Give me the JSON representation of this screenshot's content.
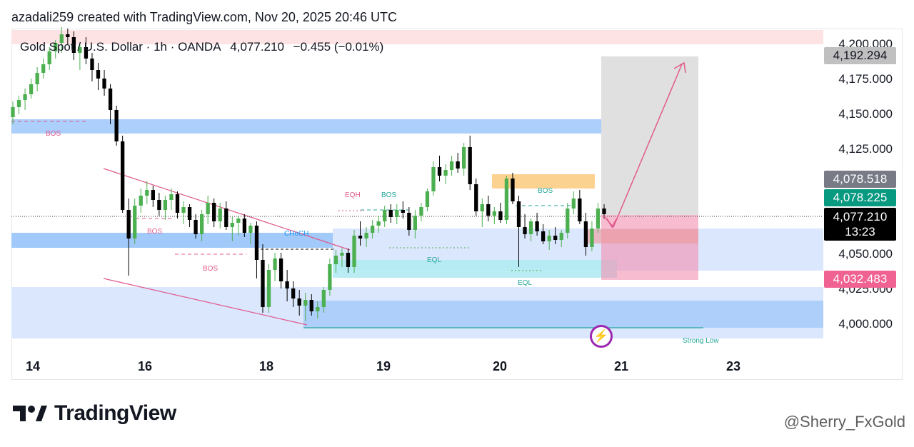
{
  "watermark_top": "azadali259 created with TradingView.com, Nov 20, 2025 20:46 UTC",
  "header": {
    "symbol": "Gold Spot / U.S. Dollar · 1h · OANDA",
    "price": "4,077.210",
    "change": "−0.455 (−0.01%)"
  },
  "brand": "TradingView",
  "watermark_bottom": "@Sherry_FxGold",
  "price_tags": {
    "target": "4,192.294",
    "tag1": "4,078.518",
    "tag2": "4,078.225",
    "last": "4,077.210",
    "countdown": "13:23",
    "stop": "4,032.483"
  },
  "annotations": {
    "bos1": "BOS",
    "bos2": "BOS",
    "bos3": "BOS",
    "bos4": "BOS",
    "bos5": "BOS",
    "choch": "CHoCH",
    "eqh": "EQH",
    "eql1": "EQL",
    "eql2": "EQL",
    "strong_low": "Strong Low"
  },
  "colors": {
    "up": "#4caf50",
    "down": "#000000",
    "zone_blue": "#90bff9",
    "zone_light": "#dbe7fd",
    "cyan": "#b2ebf2",
    "orange": "#fcca7c",
    "pink": "#f8bbd0",
    "grey_box": "#e0e0e0",
    "trendline": "#e05a8b"
  },
  "chart_data": {
    "type": "candlestick",
    "y_ticks": [
      "4,200.000",
      "4,175.000",
      "4,150.000",
      "4,125.000",
      "4,050.000",
      "4,025.000",
      "4,000.000"
    ],
    "x_ticks": [
      "14",
      "16",
      "18",
      "19",
      "20",
      "21",
      "23"
    ],
    "ylim": [
      3990,
      4206
    ],
    "candles": [
      [
        4145,
        4156,
        4140,
        4152
      ],
      [
        4152,
        4160,
        4147,
        4157
      ],
      [
        4157,
        4165,
        4150,
        4161
      ],
      [
        4161,
        4172,
        4158,
        4168
      ],
      [
        4168,
        4180,
        4163,
        4176
      ],
      [
        4176,
        4186,
        4172,
        4182
      ],
      [
        4182,
        4194,
        4178,
        4191
      ],
      [
        4191,
        4199,
        4186,
        4197
      ],
      [
        4197,
        4208,
        4190,
        4203
      ],
      [
        4203,
        4207,
        4196,
        4201
      ],
      [
        4201,
        4205,
        4185,
        4190
      ],
      [
        4190,
        4197,
        4178,
        4194
      ],
      [
        4194,
        4201,
        4182,
        4186
      ],
      [
        4186,
        4190,
        4170,
        4178
      ],
      [
        4178,
        4183,
        4164,
        4172
      ],
      [
        4172,
        4178,
        4160,
        4165
      ],
      [
        4165,
        4168,
        4140,
        4150
      ],
      [
        4150,
        4153,
        4125,
        4128
      ],
      [
        4128,
        4132,
        4078,
        4080
      ],
      [
        4080,
        4088,
        4034,
        4060
      ],
      [
        4060,
        4088,
        4056,
        4083
      ],
      [
        4083,
        4095,
        4078,
        4090
      ],
      [
        4090,
        4100,
        4084,
        4094
      ],
      [
        4094,
        4097,
        4082,
        4087
      ],
      [
        4087,
        4092,
        4076,
        4080
      ],
      [
        4080,
        4090,
        4073,
        4087
      ],
      [
        4087,
        4095,
        4080,
        4091
      ],
      [
        4091,
        4093,
        4074,
        4078
      ],
      [
        4078,
        4086,
        4070,
        4082
      ],
      [
        4082,
        4084,
        4068,
        4073
      ],
      [
        4073,
        4077,
        4060,
        4063
      ],
      [
        4063,
        4080,
        4058,
        4077
      ],
      [
        4077,
        4090,
        4070,
        4085
      ],
      [
        4085,
        4088,
        4068,
        4072
      ],
      [
        4072,
        4085,
        4067,
        4081
      ],
      [
        4081,
        4086,
        4066,
        4068
      ],
      [
        4068,
        4075,
        4058,
        4071
      ],
      [
        4071,
        4076,
        4062,
        4074
      ],
      [
        4074,
        4077,
        4061,
        4064
      ],
      [
        4064,
        4071,
        4056,
        4069
      ],
      [
        4069,
        4072,
        4032,
        4045
      ],
      [
        4045,
        4056,
        4008,
        4012
      ],
      [
        4012,
        4042,
        4008,
        4038
      ],
      [
        4038,
        4050,
        4030,
        4046
      ],
      [
        4046,
        4050,
        4025,
        4030
      ],
      [
        4030,
        4038,
        4016,
        4025
      ],
      [
        4025,
        4030,
        4012,
        4018
      ],
      [
        4018,
        4024,
        4006,
        4013
      ],
      [
        4013,
        4022,
        4002,
        4017
      ],
      [
        4017,
        4021,
        4006,
        4009
      ],
      [
        4009,
        4016,
        4004,
        4012
      ],
      [
        4012,
        4026,
        4008,
        4024
      ],
      [
        4024,
        4046,
        4020,
        4042
      ],
      [
        4042,
        4052,
        4036,
        4048
      ],
      [
        4048,
        4053,
        4040,
        4050
      ],
      [
        4050,
        4053,
        4036,
        4040
      ],
      [
        4040,
        4066,
        4036,
        4062
      ],
      [
        4062,
        4072,
        4055,
        4060
      ],
      [
        4060,
        4068,
        4054,
        4064
      ],
      [
        4064,
        4073,
        4060,
        4069
      ],
      [
        4069,
        4076,
        4064,
        4072
      ],
      [
        4072,
        4083,
        4068,
        4080
      ],
      [
        4080,
        4084,
        4071,
        4075
      ],
      [
        4075,
        4084,
        4070,
        4080
      ],
      [
        4080,
        4086,
        4074,
        4078
      ],
      [
        4078,
        4082,
        4062,
        4066
      ],
      [
        4066,
        4080,
        4060,
        4076
      ],
      [
        4076,
        4085,
        4072,
        4082
      ],
      [
        4082,
        4095,
        4079,
        4093
      ],
      [
        4093,
        4114,
        4090,
        4110
      ],
      [
        4110,
        4118,
        4100,
        4104
      ],
      [
        4104,
        4112,
        4098,
        4108
      ],
      [
        4108,
        4118,
        4104,
        4114
      ],
      [
        4114,
        4120,
        4106,
        4109
      ],
      [
        4109,
        4127,
        4104,
        4124
      ],
      [
        4124,
        4132,
        4094,
        4098
      ],
      [
        4098,
        4102,
        4076,
        4079
      ],
      [
        4079,
        4088,
        4068,
        4084
      ],
      [
        4084,
        4090,
        4072,
        4076
      ],
      [
        4076,
        4082,
        4070,
        4079
      ],
      [
        4079,
        4085,
        4071,
        4073
      ],
      [
        4073,
        4104,
        4070,
        4102
      ],
      [
        4102,
        4106,
        4084,
        4086
      ],
      [
        4086,
        4090,
        4040,
        4068
      ],
      [
        4068,
        4077,
        4060,
        4063
      ],
      [
        4063,
        4074,
        4058,
        4072
      ],
      [
        4072,
        4078,
        4062,
        4065
      ],
      [
        4065,
        4070,
        4056,
        4058
      ],
      [
        4058,
        4066,
        4052,
        4062
      ],
      [
        4062,
        4068,
        4056,
        4059
      ],
      [
        4059,
        4066,
        4054,
        4064
      ],
      [
        4064,
        4085,
        4060,
        4081
      ],
      [
        4081,
        4093,
        4077,
        4088
      ],
      [
        4088,
        4094,
        4070,
        4072
      ],
      [
        4072,
        4078,
        4048,
        4054
      ],
      [
        4054,
        4072,
        4051,
        4067
      ],
      [
        4067,
        4085,
        4064,
        4081
      ],
      [
        4081,
        4084,
        4074,
        4077
      ]
    ]
  }
}
